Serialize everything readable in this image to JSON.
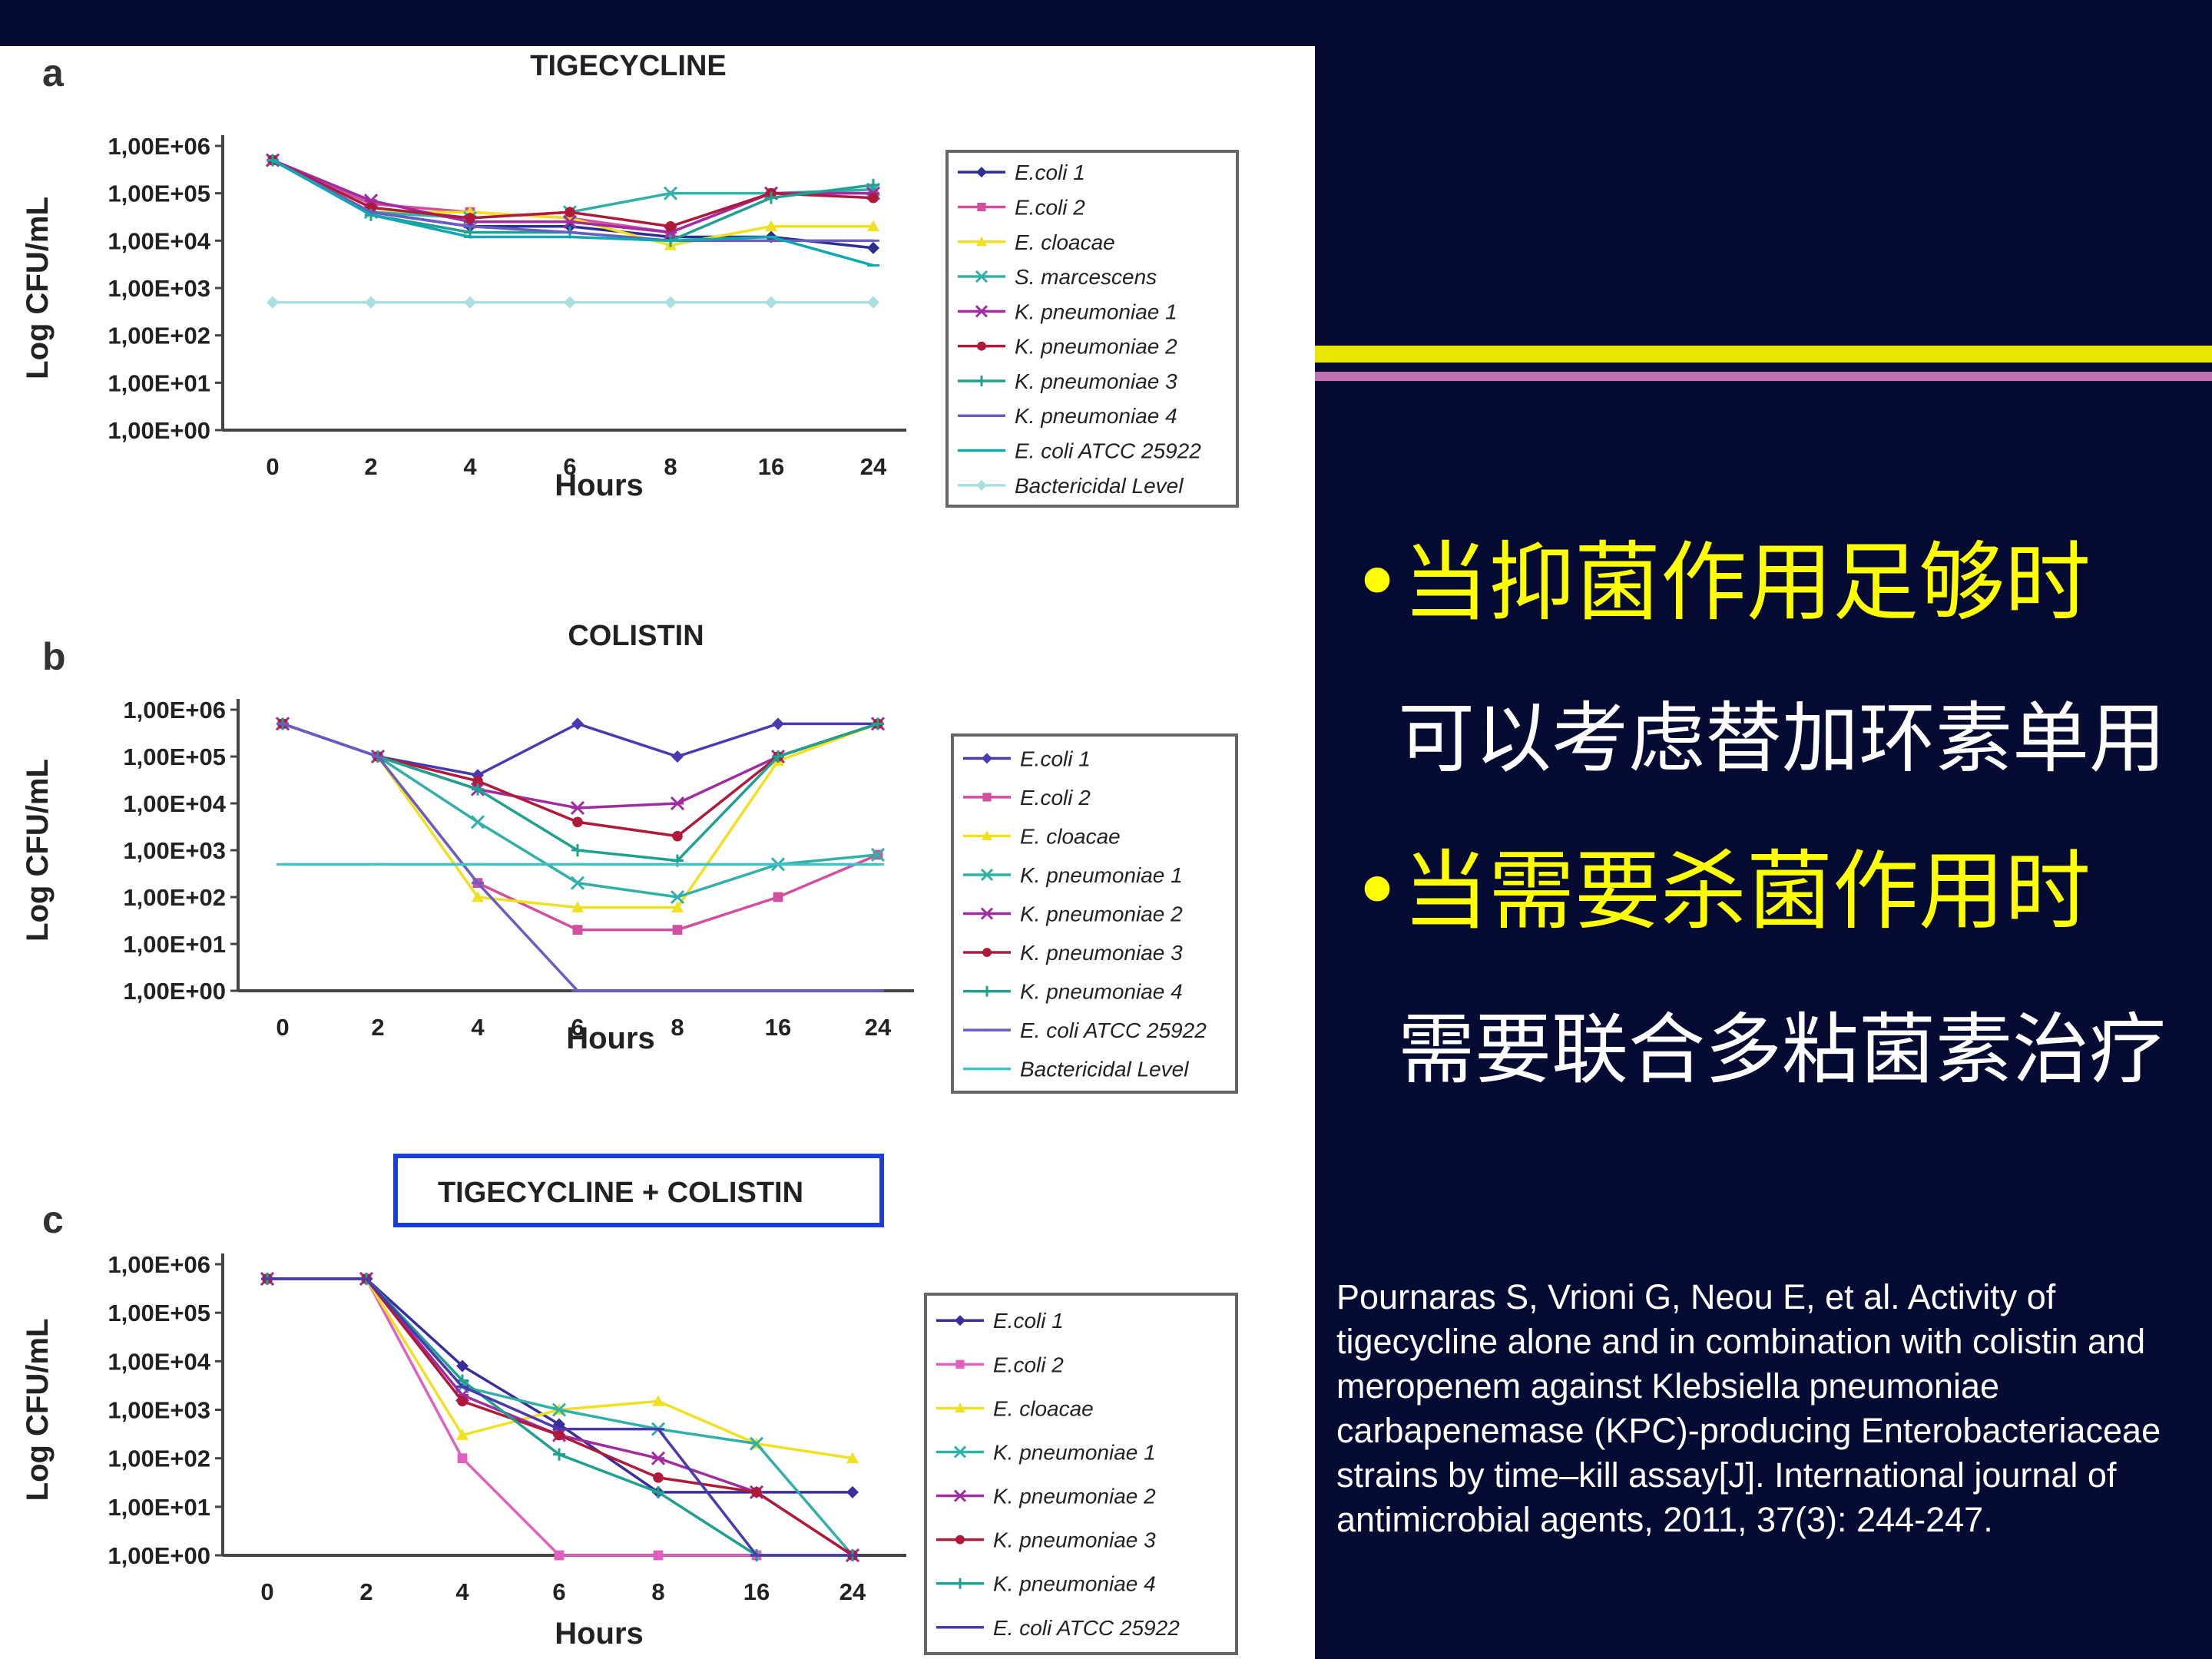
{
  "slide": {
    "bullet1": "•当抑菌作用足够时",
    "sub1": "可以考虑替加环素单用",
    "bullet2": "•当需要杀菌作用时",
    "sub2": "需要联合多粘菌素治疗",
    "citation": "Pournaras S, Vrioni G, Neou E, et al. Activity of tigecycline alone and in combination with colistin and meropenem against Klebsiella pneumoniae carbapenemase (KPC)-producing Enterobacteriaceae strains by time–kill assay[J]. International journal of antimicrobial agents, 2011, 37(3): 244-247.",
    "colors": {
      "background": "#050b33",
      "accent_yellow": "#ffff00",
      "divider_yellow": "#e8e600",
      "divider_pink": "#c070b0",
      "highlight_box": "#1a3fd6"
    }
  },
  "chart_data": [
    {
      "type": "line",
      "panel_label": "a",
      "title": "TIGECYCLINE",
      "xlabel": "Hours",
      "ylabel": "Log CFU/mL",
      "y_scale": "log",
      "yticks": [
        "1,00E+00",
        "1,00E+01",
        "1,00E+02",
        "1,00E+03",
        "1,00E+04",
        "1,00E+05",
        "1,00E+06"
      ],
      "categories": [
        "0",
        "2",
        "4",
        "6",
        "8",
        "16",
        "24"
      ],
      "legend_position": "right",
      "series": [
        {
          "name": "E.coli 1",
          "color": "#2b2f8f",
          "marker": "diamond",
          "values": [
            500000,
            40000,
            20000,
            20000,
            12000,
            12000,
            7000
          ]
        },
        {
          "name": "E.coli 2",
          "color": "#d24fa0",
          "marker": "square",
          "values": [
            500000,
            60000,
            40000,
            30000,
            15000,
            100000,
            100000
          ]
        },
        {
          "name": "E. cloacae",
          "color": "#f0e020",
          "marker": "triangle",
          "values": [
            500000,
            40000,
            40000,
            30000,
            8000,
            20000,
            20000
          ]
        },
        {
          "name": "S. marcescens",
          "color": "#30b0a8",
          "marker": "x",
          "values": [
            500000,
            40000,
            30000,
            40000,
            100000,
            100000,
            120000
          ]
        },
        {
          "name": "K. pneumoniae 1",
          "color": "#a02ca0",
          "marker": "star",
          "values": [
            500000,
            70000,
            25000,
            25000,
            15000,
            100000,
            100000
          ]
        },
        {
          "name": "K. pneumoniae 2",
          "color": "#b01a3a",
          "marker": "circle",
          "values": [
            500000,
            50000,
            30000,
            40000,
            20000,
            100000,
            80000
          ]
        },
        {
          "name": "K. pneumoniae 3",
          "color": "#20a090",
          "marker": "plus",
          "values": [
            500000,
            35000,
            15000,
            15000,
            10000,
            80000,
            150000
          ]
        },
        {
          "name": "K. pneumoniae 4",
          "color": "#6a5cc0",
          "marker": "dash",
          "values": [
            500000,
            40000,
            20000,
            15000,
            10000,
            10000,
            10000
          ]
        },
        {
          "name": "E. coli ATCC 25922",
          "color": "#10a8b0",
          "marker": "dash",
          "values": [
            500000,
            35000,
            12000,
            12000,
            10000,
            12000,
            3000
          ]
        },
        {
          "name": "Bactericidal Level",
          "color": "#a8e0e0",
          "marker": "diamond",
          "values": [
            500,
            500,
            500,
            500,
            500,
            500,
            500
          ]
        }
      ]
    },
    {
      "type": "line",
      "panel_label": "b",
      "title": "COLISTIN",
      "xlabel": "Hours",
      "ylabel": "Log CFU/mL",
      "y_scale": "log",
      "yticks": [
        "1,00E+00",
        "1,00E+01",
        "1,00E+02",
        "1,00E+03",
        "1,00E+04",
        "1,00E+05",
        "1,00E+06"
      ],
      "categories": [
        "0",
        "2",
        "4",
        "6",
        "8",
        "16",
        "24"
      ],
      "legend_position": "right",
      "series": [
        {
          "name": "E.coli 1",
          "color": "#4a3ab0",
          "marker": "diamond",
          "values": [
            500000,
            100000,
            40000,
            500000,
            100000,
            500000,
            500000
          ]
        },
        {
          "name": "E.coli 2",
          "color": "#d24fa0",
          "marker": "square",
          "values": [
            500000,
            100000,
            200,
            20,
            20,
            100,
            800
          ]
        },
        {
          "name": "E. cloacae",
          "color": "#f0e020",
          "marker": "triangle",
          "values": [
            500000,
            100000,
            100,
            60,
            60,
            80000,
            500000
          ]
        },
        {
          "name": "K. pneumoniae 1",
          "color": "#30b0a8",
          "marker": "x",
          "values": [
            500000,
            100000,
            4000,
            200,
            100,
            500,
            800
          ]
        },
        {
          "name": "K. pneumoniae 2",
          "color": "#a02ca0",
          "marker": "star",
          "values": [
            500000,
            100000,
            20000,
            8000,
            10000,
            100000,
            500000
          ]
        },
        {
          "name": "K. pneumoniae 3",
          "color": "#b01a3a",
          "marker": "circle",
          "values": [
            500000,
            100000,
            30000,
            4000,
            2000,
            100000,
            500000
          ]
        },
        {
          "name": "K. pneumoniae 4",
          "color": "#20a090",
          "marker": "plus",
          "values": [
            500000,
            100000,
            20000,
            1000,
            600,
            100000,
            500000
          ]
        },
        {
          "name": "E. coli ATCC 25922",
          "color": "#6a5cc0",
          "marker": "dash",
          "values": [
            500000,
            100000,
            200,
            1,
            1,
            1,
            1
          ]
        },
        {
          "name": "Bactericidal Level",
          "color": "#40c0c8",
          "marker": "dash",
          "values": [
            500,
            500,
            500,
            500,
            500,
            500,
            500
          ]
        }
      ]
    },
    {
      "type": "line",
      "panel_label": "c",
      "title": "TIGECYCLINE + COLISTIN",
      "xlabel": "Hours",
      "ylabel": "Log CFU/mL",
      "y_scale": "log",
      "yticks": [
        "1,00E+00",
        "1,00E+01",
        "1,00E+02",
        "1,00E+03",
        "1,00E+04",
        "1,00E+05",
        "1,00E+06"
      ],
      "categories": [
        "0",
        "2",
        "4",
        "6",
        "8",
        "16",
        "24"
      ],
      "legend_position": "right",
      "series": [
        {
          "name": "E.coli 1",
          "color": "#3a2f9a",
          "marker": "diamond",
          "values": [
            500000,
            500000,
            8000,
            500,
            20,
            20,
            20
          ]
        },
        {
          "name": "E.coli 2",
          "color": "#e060c0",
          "marker": "square",
          "values": [
            500000,
            500000,
            100,
            1,
            1,
            1,
            1
          ]
        },
        {
          "name": "E. cloacae",
          "color": "#f0e020",
          "marker": "triangle",
          "values": [
            500000,
            500000,
            300,
            1000,
            1500,
            200,
            100
          ]
        },
        {
          "name": "K. pneumoniae 1",
          "color": "#30b0a8",
          "marker": "x",
          "values": [
            500000,
            500000,
            3000,
            1000,
            400,
            200,
            1
          ]
        },
        {
          "name": "K. pneumoniae 2",
          "color": "#a02ca0",
          "marker": "star",
          "values": [
            500000,
            500000,
            2000,
            300,
            100,
            20,
            1
          ]
        },
        {
          "name": "K. pneumoniae 3",
          "color": "#b01a3a",
          "marker": "circle",
          "values": [
            500000,
            500000,
            1500,
            300,
            40,
            20,
            1
          ]
        },
        {
          "name": "K. pneumoniae 4",
          "color": "#20a090",
          "marker": "plus",
          "values": [
            500000,
            500000,
            4000,
            120,
            20,
            1,
            1
          ]
        },
        {
          "name": "E. coli ATCC 25922",
          "color": "#4a3ab0",
          "marker": "dash",
          "values": [
            500000,
            500000,
            3000,
            400,
            400,
            1,
            1
          ]
        }
      ]
    }
  ]
}
